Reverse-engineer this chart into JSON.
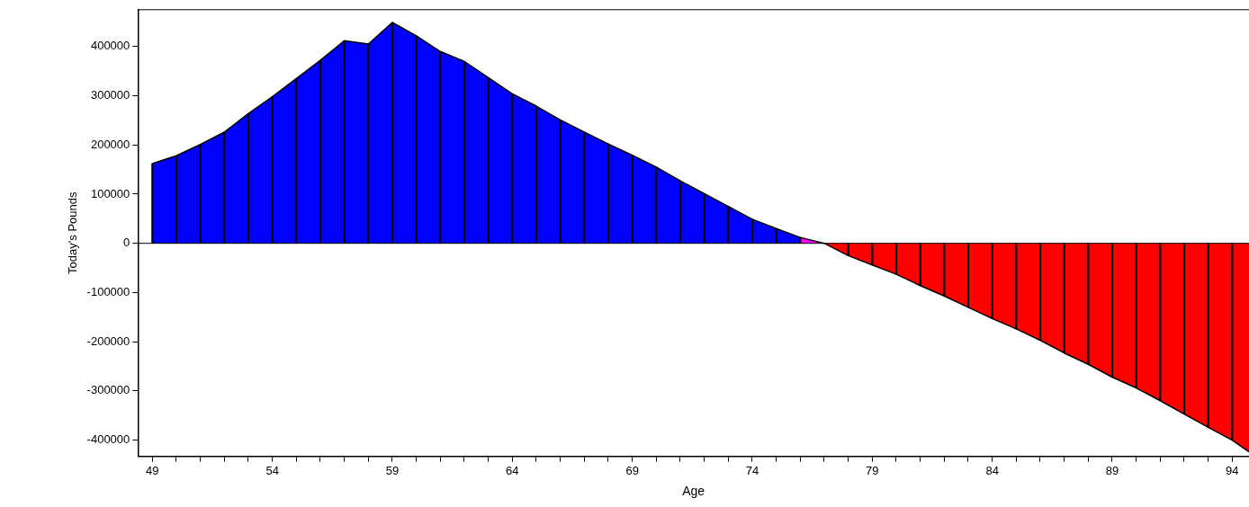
{
  "chart_data": {
    "type": "area",
    "xlabel": "Age",
    "ylabel": "Today's Pounds",
    "xlim": [
      48.4,
      94.7
    ],
    "ylim": [
      -433000,
      475000
    ],
    "xticks": [
      49,
      {
        "value": 50,
        "label": null
      },
      {
        "value": 51,
        "label": null
      },
      {
        "value": 52,
        "label": null
      },
      {
        "value": 53,
        "label": null
      },
      54,
      {
        "value": 55,
        "label": null
      },
      {
        "value": 56,
        "label": null
      },
      {
        "value": 57,
        "label": null
      },
      {
        "value": 58,
        "label": null
      },
      59,
      {
        "value": 60,
        "label": null
      },
      {
        "value": 61,
        "label": null
      },
      {
        "value": 62,
        "label": null
      },
      {
        "value": 63,
        "label": null
      },
      64,
      {
        "value": 65,
        "label": null
      },
      {
        "value": 66,
        "label": null
      },
      {
        "value": 67,
        "label": null
      },
      {
        "value": 68,
        "label": null
      },
      69,
      {
        "value": 70,
        "label": null
      },
      {
        "value": 71,
        "label": null
      },
      {
        "value": 72,
        "label": null
      },
      {
        "value": 73,
        "label": null
      },
      74,
      {
        "value": 75,
        "label": null
      },
      {
        "value": 76,
        "label": null
      },
      {
        "value": 77,
        "label": null
      },
      {
        "value": 78,
        "label": null
      },
      79,
      {
        "value": 80,
        "label": null
      },
      {
        "value": 81,
        "label": null
      },
      {
        "value": 82,
        "label": null
      },
      {
        "value": 83,
        "label": null
      },
      84,
      {
        "value": 85,
        "label": null
      },
      {
        "value": 86,
        "label": null
      },
      {
        "value": 87,
        "label": null
      },
      {
        "value": 88,
        "label": null
      },
      89,
      {
        "value": 90,
        "label": null
      },
      {
        "value": 91,
        "label": null
      },
      {
        "value": 92,
        "label": null
      },
      {
        "value": 93,
        "label": null
      },
      94
    ],
    "yticks": [
      -400000,
      -300000,
      -200000,
      -100000,
      0,
      100000,
      200000,
      300000,
      400000
    ],
    "grid": false,
    "legend": false,
    "ref_lines": [
      {
        "axis": "y",
        "value": 0,
        "color": "#000000"
      }
    ],
    "series": [
      {
        "color": "#0000ff",
        "x": [
          49,
          50,
          51,
          52,
          53,
          54,
          55,
          56,
          57,
          58,
          59,
          60,
          61,
          62,
          63,
          64,
          65,
          66,
          67,
          68,
          69,
          70,
          71,
          72,
          73,
          74,
          75,
          76
        ],
        "values": [
          162000,
          178000,
          201000,
          226000,
          264000,
          298000,
          335000,
          372000,
          412000,
          405000,
          449000,
          422000,
          390000,
          370000,
          337000,
          304000,
          279000,
          251000,
          226000,
          202000,
          179000,
          155000,
          127000,
          101000,
          75000,
          49000,
          30000,
          12000
        ]
      },
      {
        "color": "#ff00ff",
        "x": [
          76,
          77
        ],
        "values": [
          12000,
          0
        ]
      },
      {
        "type": "bar",
        "color": "#000000",
        "x": [
          49,
          50,
          51,
          52,
          53,
          54,
          55,
          56,
          57,
          58,
          59,
          60,
          61,
          62,
          63,
          64,
          65,
          66,
          67,
          68,
          69,
          70,
          71,
          72,
          73,
          74,
          75,
          76,
          78,
          79,
          80,
          81,
          82,
          83,
          84,
          85,
          86,
          87,
          88,
          89,
          90,
          91,
          92,
          93,
          94
        ],
        "values": [
          162000,
          178000,
          201000,
          226000,
          264000,
          298000,
          335000,
          372000,
          412000,
          405000,
          449000,
          422000,
          390000,
          370000,
          337000,
          304000,
          279000,
          251000,
          226000,
          202000,
          179000,
          155000,
          127000,
          101000,
          75000,
          49000,
          30000,
          12000,
          -25000,
          -44000,
          -63000,
          -86000,
          -107000,
          -130000,
          -153000,
          -174000,
          -197000,
          -223000,
          -246000,
          -272000,
          -294000,
          -320000,
          -347000,
          -374000,
          -400000
        ]
      },
      {
        "color": "#ff0000",
        "x": [
          77,
          78,
          79,
          80,
          81,
          82,
          83,
          84,
          85,
          86,
          87,
          88,
          89,
          90,
          91,
          92,
          93,
          94,
          94.7
        ],
        "values": [
          0,
          -25000,
          -44000,
          -63000,
          -86000,
          -107000,
          -130000,
          -153000,
          -174000,
          -197000,
          -223000,
          -246000,
          -272000,
          -294000,
          -320000,
          -347000,
          -374000,
          -400000,
          -424000
        ]
      }
    ]
  }
}
